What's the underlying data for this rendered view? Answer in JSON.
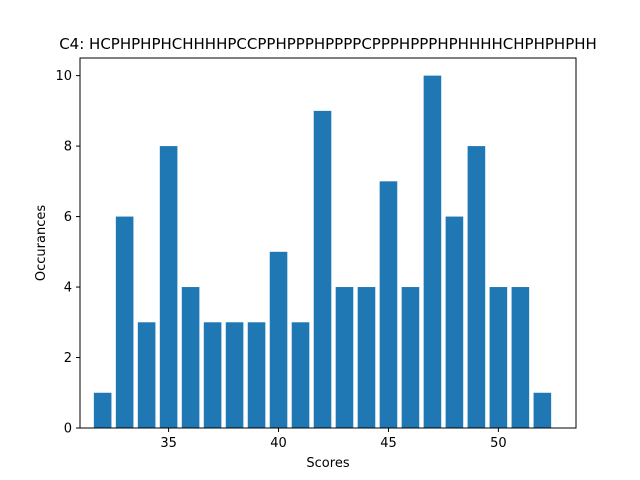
{
  "chart_data": {
    "type": "bar",
    "title": "C4: HCPHPHPHCHHHHPCCPPHPPPHPPPPCPPPHPPPHPHHHHCHPHPHPHH",
    "xlabel": "Scores",
    "ylabel": "Occurances",
    "x": [
      32,
      33,
      34,
      35,
      36,
      37,
      38,
      39,
      40,
      41,
      42,
      43,
      44,
      45,
      46,
      47,
      48,
      49,
      50,
      51,
      52
    ],
    "values": [
      1,
      6,
      3,
      8,
      4,
      3,
      3,
      3,
      5,
      3,
      9,
      4,
      4,
      7,
      4,
      10,
      6,
      8,
      4,
      4,
      1
    ],
    "xlim": [
      30.97,
      53.53
    ],
    "ylim": [
      0,
      10.5
    ],
    "xticks": [
      35,
      40,
      45,
      50
    ],
    "yticks": [
      0,
      2,
      4,
      6,
      8,
      10
    ],
    "bar_color": "#1f77b4",
    "grid": false,
    "legend": "none"
  }
}
